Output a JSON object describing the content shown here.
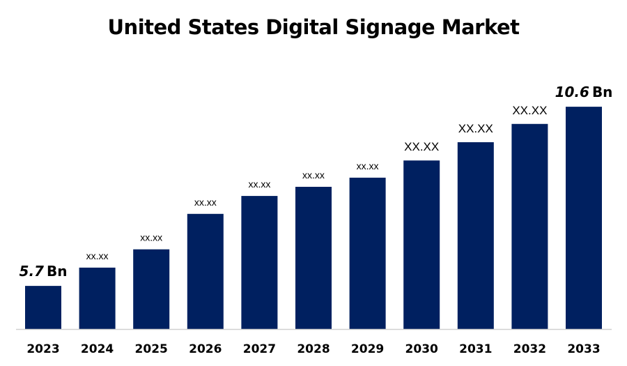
{
  "chart_data": {
    "type": "bar",
    "title": "United States Digital Signage Market",
    "xlabel": "",
    "ylabel": "",
    "categories": [
      "2023",
      "2024",
      "2025",
      "2026",
      "2027",
      "2028",
      "2029",
      "2030",
      "2031",
      "2032",
      "2033"
    ],
    "values": [
      5.7,
      6.2,
      6.7,
      7.67,
      8.16,
      8.41,
      8.66,
      9.13,
      9.63,
      10.13,
      10.6
    ],
    "data_labels": [
      {
        "value": "5.7",
        "unit": "Bn"
      },
      {
        "value": "xx.xx",
        "unit": ""
      },
      {
        "value": "xx.xx",
        "unit": ""
      },
      {
        "value": "xx.xx",
        "unit": ""
      },
      {
        "value": "xx.xx",
        "unit": ""
      },
      {
        "value": "xx.xx",
        "unit": ""
      },
      {
        "value": "xx.xx",
        "unit": ""
      },
      {
        "value": "XX.XX",
        "unit": ""
      },
      {
        "value": "XX.XX",
        "unit": ""
      },
      {
        "value": "XX.XX",
        "unit": ""
      },
      {
        "value": "10.6",
        "unit": "Bn"
      }
    ],
    "ylim": [
      4.52,
      11.5
    ],
    "grid": false,
    "legend": "none",
    "colors": {
      "bar": "#002060",
      "axis": "#d0d0d0"
    }
  }
}
